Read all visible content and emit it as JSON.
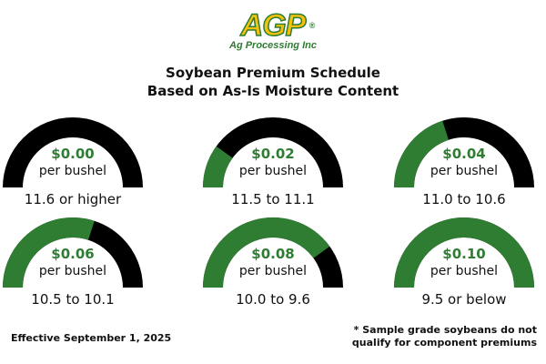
{
  "logo": {
    "mark": "AGP",
    "registered": "®",
    "company": "Ag Processing Inc"
  },
  "title": {
    "line1": "Soybean Premium Schedule",
    "line2": "Based on As-Is Moisture Content"
  },
  "colors": {
    "green": "#2e7d32",
    "black": "#000000",
    "logo_yellow": "#f4c20d"
  },
  "gauges": [
    {
      "value": "$0.00",
      "unit": "per bushel",
      "range": "11.6 or higher",
      "fill": 0.0
    },
    {
      "value": "$0.02",
      "unit": "per bushel",
      "range": "11.5 to 11.1",
      "fill": 0.2
    },
    {
      "value": "$0.04",
      "unit": "per bushel",
      "range": "11.0 to 10.6",
      "fill": 0.4
    },
    {
      "value": "$0.06",
      "unit": "per bushel",
      "range": "10.5 to 10.1",
      "fill": 0.6
    },
    {
      "value": "$0.08",
      "unit": "per bushel",
      "range": "10.0 to 9.6",
      "fill": 0.8
    },
    {
      "value": "$0.10",
      "unit": "per bushel",
      "range": "9.5 or below",
      "fill": 1.0
    }
  ],
  "footer": {
    "effective": "Effective September 1, 2025",
    "note_line1": "* Sample grade soybeans do not",
    "note_line2": "qualify for component premiums"
  }
}
